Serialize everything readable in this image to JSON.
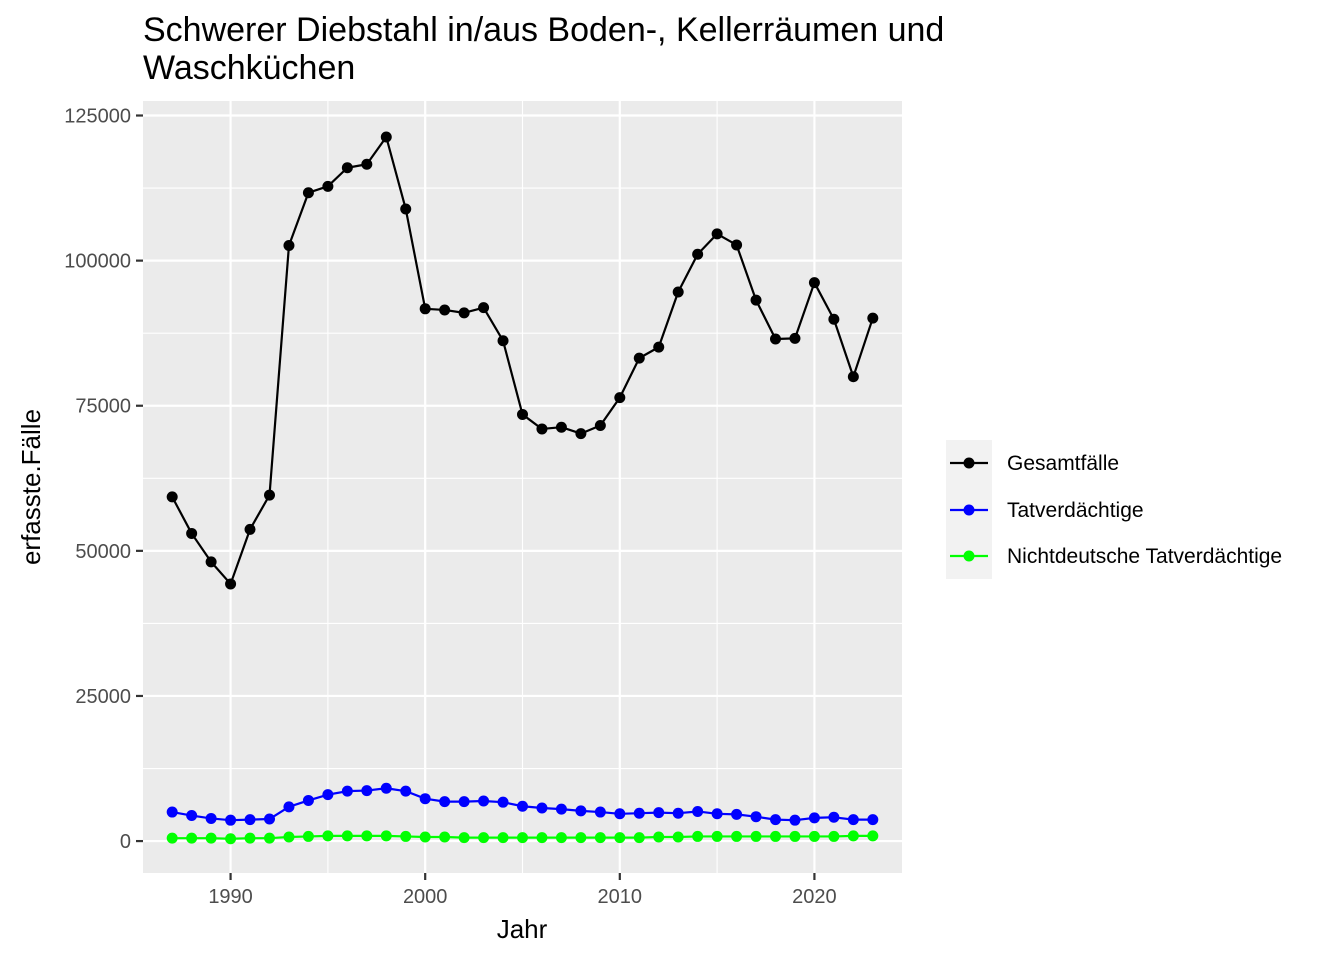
{
  "chart_data": {
    "type": "line",
    "title_line1": "Schwerer Diebstahl in/aus Boden-, Kellerräumen und",
    "title_line2": "Waschküchen",
    "xlabel": "Jahr",
    "ylabel": "erfasste.Fälle",
    "xlim": [
      1985.5,
      2024.5
    ],
    "ylim": [
      -5500,
      127500
    ],
    "x_ticks": [
      1990,
      2000,
      2010,
      2020
    ],
    "y_ticks": [
      0,
      25000,
      50000,
      75000,
      100000,
      125000
    ],
    "grid": true,
    "legend_position": "right",
    "x": [
      1987,
      1988,
      1989,
      1990,
      1991,
      1992,
      1993,
      1994,
      1995,
      1996,
      1997,
      1998,
      1999,
      2000,
      2001,
      2002,
      2003,
      2004,
      2005,
      2006,
      2007,
      2008,
      2009,
      2010,
      2011,
      2012,
      2013,
      2014,
      2015,
      2016,
      2017,
      2018,
      2019,
      2020,
      2021,
      2022,
      2023
    ],
    "series": [
      {
        "name": "Gesamtfälle",
        "color": "#000000",
        "values": [
          59300,
          53000,
          48100,
          44300,
          53700,
          59600,
          102600,
          111700,
          112800,
          116000,
          116600,
          121300,
          108900,
          91700,
          91500,
          91000,
          91900,
          86200,
          73500,
          71000,
          71300,
          70200,
          71600,
          76400,
          83200,
          85100,
          94600,
          101100,
          104600,
          102700,
          93200,
          86500,
          86600,
          96200,
          89900,
          80000,
          90100
        ]
      },
      {
        "name": "Tatverdächtige",
        "color": "#0000ff",
        "values": [
          5000,
          4400,
          3900,
          3600,
          3700,
          3800,
          5900,
          7000,
          8000,
          8600,
          8700,
          9100,
          8600,
          7300,
          6800,
          6800,
          6900,
          6700,
          6000,
          5700,
          5500,
          5200,
          5000,
          4700,
          4800,
          4900,
          4800,
          5100,
          4700,
          4600,
          4200,
          3700,
          3600,
          4000,
          4100,
          3700,
          3700
        ]
      },
      {
        "name": "Nichtdeutsche Tatverdächtige",
        "color": "#00ff00",
        "values": [
          500,
          500,
          500,
          400,
          500,
          500,
          700,
          800,
          900,
          900,
          900,
          900,
          800,
          700,
          700,
          600,
          600,
          600,
          600,
          600,
          600,
          600,
          600,
          600,
          600,
          700,
          700,
          800,
          800,
          800,
          800,
          800,
          800,
          800,
          800,
          900,
          900
        ]
      }
    ]
  }
}
